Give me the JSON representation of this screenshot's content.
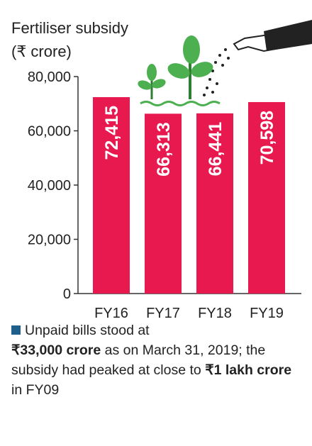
{
  "colors": {
    "bar": "#e8194f",
    "axis": "#333333",
    "plant": "#4caf50",
    "plant_dark": "#2e7d32",
    "note_swatch": "#1f5f8b"
  },
  "chart_data": {
    "type": "bar",
    "title": "Fertiliser subsidy",
    "subtitle": "(₹ crore)",
    "categories": [
      "FY16",
      "FY17",
      "FY18",
      "FY19"
    ],
    "values": [
      72415,
      66313,
      66441,
      70598
    ],
    "value_labels": [
      "72,415",
      "66,313",
      "66,441",
      "70,598"
    ],
    "ylim": [
      0,
      80000
    ],
    "yticks": [
      0,
      20000,
      40000,
      60000,
      80000
    ],
    "ytick_labels": [
      "0",
      "20,000",
      "40,000",
      "60,000",
      "80,000"
    ],
    "grid": false,
    "legend": "none",
    "illustration": [
      "seedling-icon",
      "plant-icon",
      "hand-sprinkling-icon"
    ]
  },
  "note": {
    "t1": "Unpaid bills stood at",
    "b1": "₹33,000 crore",
    "t2": " as on March 31, 2019; the subsidy had peaked at close to ",
    "b2": "₹1 lakh crore",
    "t3": " in FY09"
  }
}
